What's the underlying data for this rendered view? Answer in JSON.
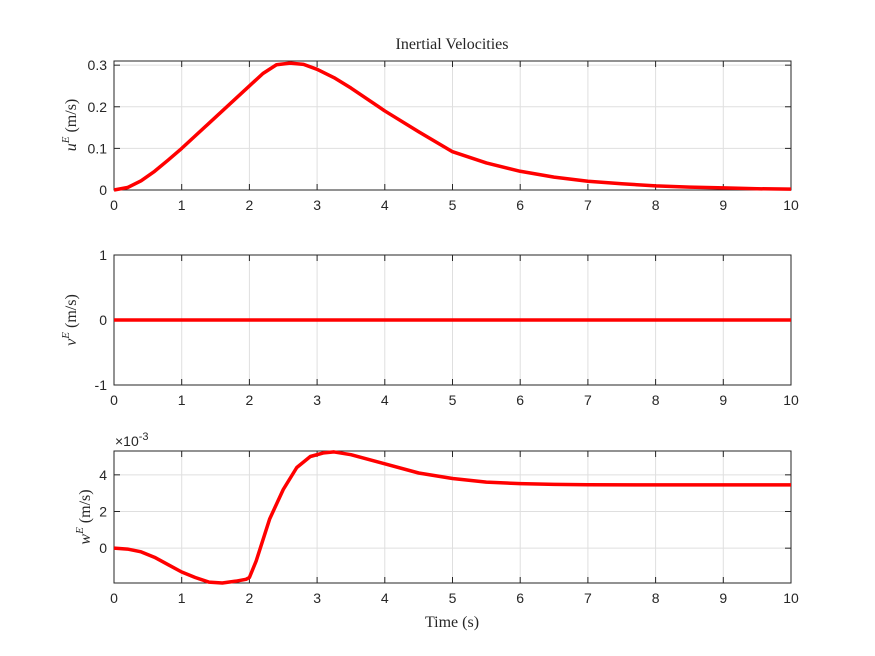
{
  "colors": {
    "line": "#ff0000",
    "grid": "#dfdfdf",
    "axis": "#262626",
    "background": "#ffffff"
  },
  "chart_data": [
    {
      "type": "line",
      "title": "Inertial Velocities",
      "ylabel_base": "u",
      "ylabel_sup": "E",
      "ylabel_unit": "(m/s)",
      "xlabel": "",
      "xlim": [
        0,
        10
      ],
      "ylim": [
        0,
        0.31
      ],
      "xticks": [
        0,
        1,
        2,
        3,
        4,
        5,
        6,
        7,
        8,
        9,
        10
      ],
      "xtick_labels": [
        "0",
        "1",
        "2",
        "3",
        "4",
        "5",
        "6",
        "7",
        "8",
        "9",
        "10"
      ],
      "yticks": [
        0,
        0.1,
        0.2,
        0.3
      ],
      "ytick_labels": [
        "0",
        "0.1",
        "0.2",
        "0.3"
      ],
      "grid": true,
      "series": [
        {
          "x": [
            0,
            0.2,
            0.4,
            0.6,
            0.8,
            1.0,
            1.2,
            1.4,
            1.6,
            1.8,
            2.0,
            2.2,
            2.4,
            2.6,
            2.8,
            3.0,
            3.25,
            3.5,
            4.0,
            4.5,
            5.0,
            5.5,
            6.0,
            6.5,
            7.0,
            7.5,
            8.0,
            8.5,
            9.0,
            9.5,
            10.0
          ],
          "y": [
            0,
            0.006,
            0.022,
            0.045,
            0.072,
            0.1,
            0.13,
            0.16,
            0.19,
            0.22,
            0.25,
            0.28,
            0.301,
            0.305,
            0.302,
            0.29,
            0.27,
            0.245,
            0.19,
            0.14,
            0.092,
            0.065,
            0.045,
            0.031,
            0.021,
            0.015,
            0.01,
            0.007,
            0.005,
            0.003,
            0.002
          ]
        }
      ]
    },
    {
      "type": "line",
      "title": "",
      "ylabel_base": "v",
      "ylabel_sup": "E",
      "ylabel_unit": "(m/s)",
      "xlabel": "",
      "xlim": [
        0,
        10
      ],
      "ylim": [
        -1,
        1
      ],
      "xticks": [
        0,
        1,
        2,
        3,
        4,
        5,
        6,
        7,
        8,
        9,
        10
      ],
      "xtick_labels": [
        "0",
        "1",
        "2",
        "3",
        "4",
        "5",
        "6",
        "7",
        "8",
        "9",
        "10"
      ],
      "yticks": [
        -1,
        0,
        1
      ],
      "ytick_labels": [
        "-1",
        "0",
        "1"
      ],
      "grid": true,
      "series": [
        {
          "x": [
            0,
            10
          ],
          "y": [
            0,
            0
          ]
        }
      ]
    },
    {
      "type": "line",
      "title": "",
      "ylabel_base": "w",
      "ylabel_sup": "E",
      "ylabel_unit": "(m/s)",
      "xlabel": "Time (s)",
      "xlim": [
        0,
        10
      ],
      "ylim": [
        -0.0019,
        0.0053
      ],
      "xticks": [
        0,
        1,
        2,
        3,
        4,
        5,
        6,
        7,
        8,
        9,
        10
      ],
      "xtick_labels": [
        "0",
        "1",
        "2",
        "3",
        "4",
        "5",
        "6",
        "7",
        "8",
        "9",
        "10"
      ],
      "yticks": [
        0,
        0.002,
        0.004
      ],
      "ytick_labels": [
        "0",
        "2",
        "4"
      ],
      "exponent_base": "×10",
      "exponent_power": "-3",
      "grid": true,
      "series": [
        {
          "x": [
            0,
            0.2,
            0.4,
            0.6,
            0.8,
            1.0,
            1.2,
            1.4,
            1.6,
            1.8,
            1.95,
            2.0,
            2.1,
            2.3,
            2.5,
            2.7,
            2.9,
            3.1,
            3.25,
            3.5,
            4.0,
            4.5,
            5.0,
            5.5,
            6.0,
            6.5,
            7.0,
            8.0,
            9.0,
            10.0
          ],
          "y": [
            0,
            -5e-05,
            -0.0002,
            -0.0005,
            -0.0009,
            -0.0013,
            -0.0016,
            -0.00185,
            -0.0019,
            -0.0018,
            -0.0017,
            -0.0016,
            -0.0007,
            0.0016,
            0.0032,
            0.0044,
            0.005,
            0.0052,
            0.00525,
            0.0051,
            0.0046,
            0.0041,
            0.0038,
            0.0036,
            0.00352,
            0.00348,
            0.00346,
            0.00345,
            0.00345,
            0.00345
          ]
        }
      ]
    }
  ]
}
